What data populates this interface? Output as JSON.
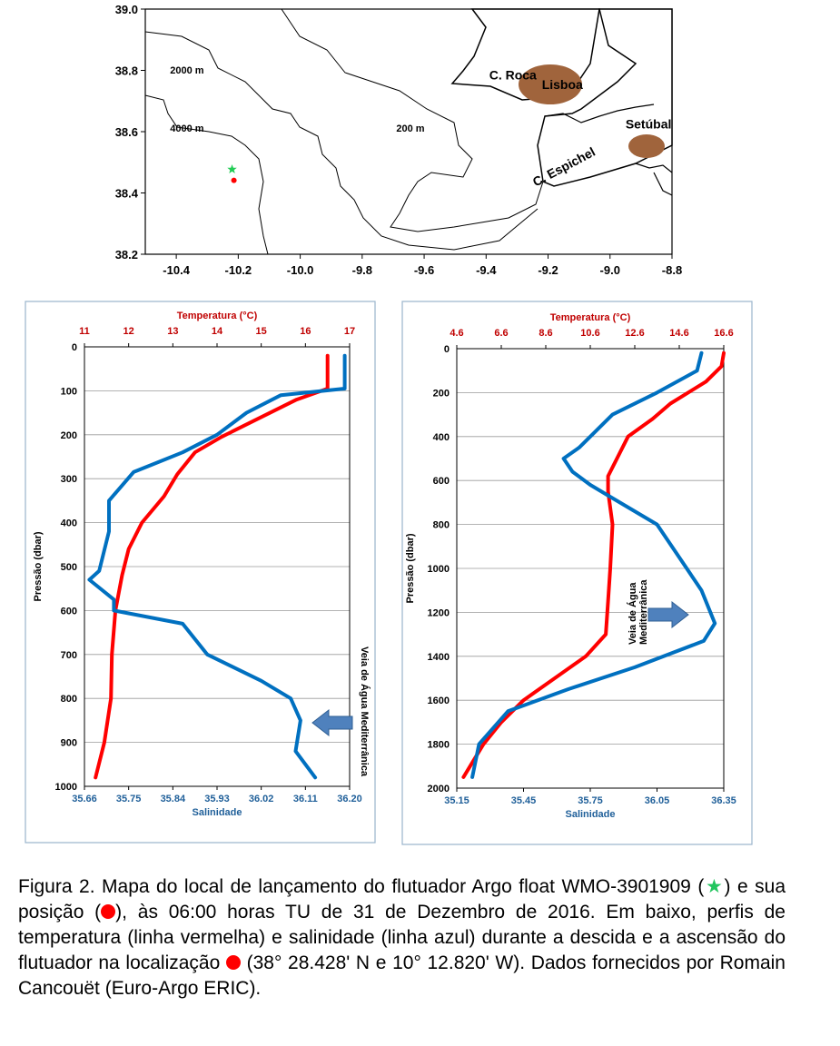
{
  "colors": {
    "temperature": "#ff0000",
    "salinity": "#0070c0",
    "temp_axis": "#c00000",
    "sal_axis": "#1f5f99",
    "land": "#a0643c",
    "float_start": "#22cc55",
    "float_pos": "#ff0000"
  },
  "chart_data": [
    {
      "type": "scatter",
      "subtype": "map",
      "xlim": [
        -10.5,
        -8.8
      ],
      "ylim": [
        38.2,
        39.0
      ],
      "x_ticks": [
        "-10.4",
        "-10.2",
        "-10.0",
        "-9.8",
        "-9.6",
        "-9.4",
        "-9.2",
        "-9.0",
        "-8.8"
      ],
      "y_ticks": [
        "39.0",
        "38.8",
        "38.6",
        "38.4",
        "38.2"
      ],
      "contour_labels": [
        {
          "text": "2000 m",
          "lon": -10.42,
          "lat": 38.79
        },
        {
          "text": "4000 m",
          "lon": -10.42,
          "lat": 38.6
        },
        {
          "text": "200 m",
          "lon": -9.69,
          "lat": 38.6
        }
      ],
      "place_labels": [
        {
          "text": "C. Roca",
          "lon": -9.39,
          "lat": 38.77
        },
        {
          "text": "Lisboa",
          "lon": -9.22,
          "lat": 38.74
        },
        {
          "text": "Setúbal",
          "lon": -8.95,
          "lat": 38.61
        },
        {
          "text": "C. Espichel",
          "lon": -9.24,
          "lat": 38.42
        }
      ],
      "points": [
        {
          "name": "Argo float WMO-3901909",
          "lon": -10.22,
          "lat": 38.477,
          "marker": "star"
        },
        {
          "name": "posição",
          "lon": -10.214,
          "lat": 38.441,
          "marker": "circle"
        }
      ]
    },
    {
      "type": "line",
      "ylabel": "Pressão (dbar)",
      "x_top_label": "Temperatura (°C)",
      "x_bottom_label": "Salinidade",
      "temp_ticks": [
        "11",
        "12",
        "13",
        "14",
        "15",
        "16",
        "17"
      ],
      "sal_ticks": [
        "35.66",
        "35.75",
        "35.84",
        "35.93",
        "36.02",
        "36.11",
        "36.20"
      ],
      "p_ticks": [
        "0",
        "100",
        "200",
        "300",
        "400",
        "500",
        "600",
        "700",
        "800",
        "900",
        "1000"
      ],
      "templim": [
        11,
        17
      ],
      "sallim": [
        35.66,
        36.2
      ],
      "plim": [
        0,
        1000
      ],
      "annotation": "Veia de Água Mediterrânica",
      "series": [
        {
          "name": "temperatura",
          "axis": "temp",
          "points": [
            [
              16.5,
              20
            ],
            [
              16.5,
              95
            ],
            [
              15.8,
              120
            ],
            [
              15.2,
              150
            ],
            [
              14.6,
              180
            ],
            [
              14.1,
              205
            ],
            [
              13.5,
              240
            ],
            [
              13.1,
              290
            ],
            [
              12.8,
              340
            ],
            [
              12.3,
              400
            ],
            [
              12.0,
              460
            ],
            [
              11.85,
              520
            ],
            [
              11.7,
              600
            ],
            [
              11.62,
              700
            ],
            [
              11.6,
              800
            ],
            [
              11.45,
              900
            ],
            [
              11.25,
              980
            ]
          ]
        },
        {
          "name": "salinidade",
          "axis": "sal",
          "points": [
            [
              36.19,
              20
            ],
            [
              36.19,
              95
            ],
            [
              36.06,
              110
            ],
            [
              35.99,
              150
            ],
            [
              35.93,
              200
            ],
            [
              35.86,
              240
            ],
            [
              35.76,
              285
            ],
            [
              35.71,
              350
            ],
            [
              35.71,
              420
            ],
            [
              35.69,
              510
            ],
            [
              35.67,
              530
            ],
            [
              35.72,
              575
            ],
            [
              35.72,
              600
            ],
            [
              35.86,
              630
            ],
            [
              35.91,
              700
            ],
            [
              36.02,
              760
            ],
            [
              36.08,
              800
            ],
            [
              36.1,
              850
            ],
            [
              36.09,
              920
            ],
            [
              36.13,
              980
            ]
          ]
        }
      ]
    },
    {
      "type": "line",
      "ylabel": "Pressão (dbar)",
      "x_top_label": "Temperatura (°C)",
      "x_bottom_label": "Salinidade",
      "temp_ticks": [
        "4.6",
        "6.6",
        "8.6",
        "10.6",
        "12.6",
        "14.6",
        "16.6"
      ],
      "sal_ticks": [
        "35.15",
        "35.45",
        "35.75",
        "36.05",
        "36.35"
      ],
      "p_ticks": [
        "0",
        "200",
        "400",
        "600",
        "800",
        "1000",
        "1200",
        "1400",
        "1600",
        "1800",
        "2000"
      ],
      "templim": [
        4.6,
        16.6
      ],
      "sallim": [
        35.15,
        36.35
      ],
      "plim": [
        0,
        2000
      ],
      "annotation": "Veia de Água Mediterrânica",
      "series": [
        {
          "name": "temperatura",
          "axis": "temp",
          "points": [
            [
              16.6,
              20
            ],
            [
              16.5,
              80
            ],
            [
              15.8,
              150
            ],
            [
              14.2,
              250
            ],
            [
              13.4,
              320
            ],
            [
              12.3,
              400
            ],
            [
              11.8,
              500
            ],
            [
              11.4,
              580
            ],
            [
              11.4,
              650
            ],
            [
              11.6,
              800
            ],
            [
              11.5,
              1000
            ],
            [
              11.4,
              1150
            ],
            [
              11.3,
              1300
            ],
            [
              10.4,
              1400
            ],
            [
              9.0,
              1500
            ],
            [
              7.6,
              1600
            ],
            [
              6.6,
              1700
            ],
            [
              5.8,
              1800
            ],
            [
              5.2,
              1900
            ],
            [
              4.9,
              1950
            ]
          ]
        },
        {
          "name": "salinidade",
          "axis": "sal",
          "points": [
            [
              36.25,
              20
            ],
            [
              36.23,
              100
            ],
            [
              36.05,
              200
            ],
            [
              35.85,
              300
            ],
            [
              35.7,
              450
            ],
            [
              35.63,
              500
            ],
            [
              35.67,
              560
            ],
            [
              35.75,
              620
            ],
            [
              35.85,
              680
            ],
            [
              36.05,
              800
            ],
            [
              36.15,
              950
            ],
            [
              36.25,
              1100
            ],
            [
              36.31,
              1250
            ],
            [
              36.26,
              1330
            ],
            [
              35.95,
              1450
            ],
            [
              35.65,
              1550
            ],
            [
              35.38,
              1650
            ],
            [
              35.25,
              1800
            ],
            [
              35.22,
              1950
            ]
          ]
        }
      ]
    }
  ],
  "caption": {
    "before_star": "Figura 2. Mapa do local de lançamento do flutuador Argo float WMO-3901909 (",
    "star": "★",
    "between": ") e sua posição (",
    "after_dot": "), às 06:00 horas TU de 31 de Dezembro de 2016. Em baixo, perfis de temperatura (linha vermelha) e salinidade (linha azul) durante a descida e a ascensão do flutuador na localização ",
    "end": " (38° 28.428' N e 10° 12.820' W). Dados fornecidos por Romain Cancouët (Euro-Argo ERIC)."
  }
}
